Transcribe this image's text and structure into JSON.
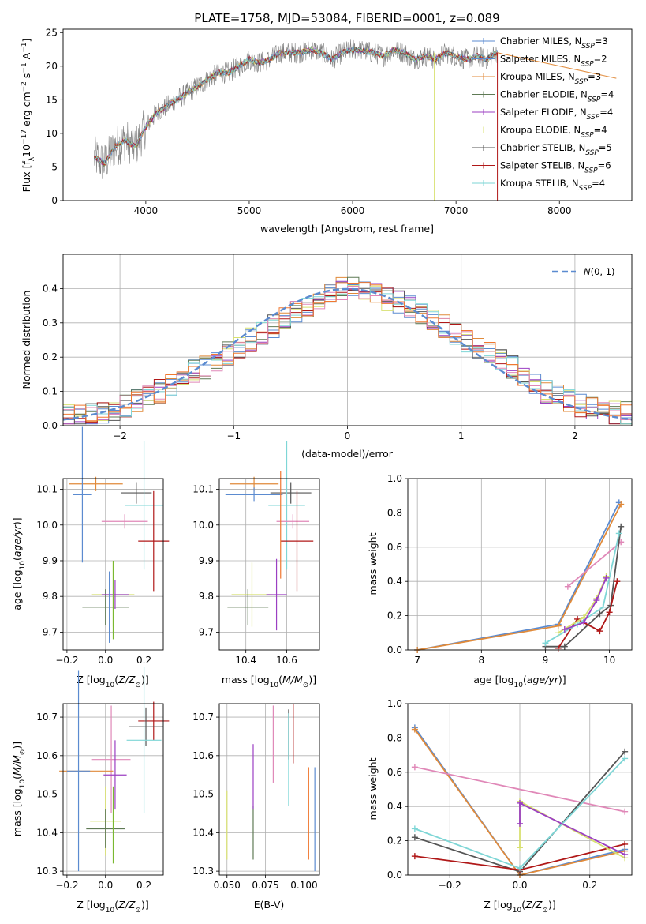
{
  "figure_title": "PLATE=1758, MJD=53084, FIBERID=0001, z=0.089",
  "colors": {
    "Chabrier MILES": "#5b8bd0",
    "Salpeter MILES": "#5b8bd0",
    "Kroupa MILES": "#e08a3a",
    "Chabrier ELODIE": "#5f7a55",
    "Salpeter ELODIE": "#9b3fc2",
    "Kroupa ELODIE": "#d8e070",
    "Chabrier STELIB": "#555555",
    "Salpeter STELIB": "#b01818",
    "Kroupa STELIB": "#7ed6d6",
    "extra_pink": "#e088b8",
    "extra_orange": "#f07830",
    "extra_green": "#7ab830",
    "normal_curve": "#5b8bd0"
  },
  "chart_data": [
    {
      "id": "spectrum",
      "type": "line",
      "title": "PLATE=1758, MJD=53084, FIBERID=0001, z=0.089",
      "xlabel": "wavelength [Angstrom, rest frame]",
      "ylabel_parts": [
        "Flux [f",
        "λ",
        "10",
        "−17",
        " erg cm",
        "−2",
        " s",
        "−1",
        " A",
        "−1",
        "]"
      ],
      "xlim": [
        3200,
        8700
      ],
      "ylim": [
        0,
        25.5
      ],
      "xticks": [
        4000,
        5000,
        6000,
        7000,
        8000
      ],
      "yticks": [
        0,
        5,
        10,
        15,
        20,
        25
      ],
      "legend_position": "right",
      "series": [
        {
          "name": "Chabrier MILES",
          "nssp": "3"
        },
        {
          "name": "Salpeter MILES",
          "nssp": "2"
        },
        {
          "name": "Kroupa MILES",
          "nssp": "3"
        },
        {
          "name": "Chabrier ELODIE",
          "nssp": "4"
        },
        {
          "name": "Salpeter ELODIE",
          "nssp": "4"
        },
        {
          "name": "Kroupa ELODIE",
          "nssp": "4"
        },
        {
          "name": "Chabrier STELIB",
          "nssp": "5"
        },
        {
          "name": "Salpeter STELIB",
          "nssp": "6"
        },
        {
          "name": "Kroupa STELIB",
          "nssp": "4"
        }
      ],
      "data_envelope": {
        "x": [
          3500,
          3600,
          3700,
          3800,
          3900,
          4000,
          4100,
          4200,
          4300,
          4400,
          4500,
          4600,
          4700,
          4800,
          4900,
          5000,
          5100,
          5200,
          5300,
          5400,
          5500,
          5600,
          5700,
          5800,
          5900,
          6000,
          6100,
          6200,
          6300,
          6400,
          6500,
          6600,
          6700,
          6800,
          6900,
          7000,
          7100,
          7200,
          7300,
          7400
        ],
        "y": [
          6.5,
          5.5,
          8,
          9,
          8,
          11,
          13,
          14,
          15,
          16,
          17,
          18,
          19,
          19,
          20,
          21,
          20.5,
          21,
          22,
          22,
          22,
          22.5,
          22,
          21,
          22,
          22.5,
          22.3,
          22,
          21.5,
          22.5,
          22,
          21,
          21.5,
          21,
          22,
          21.5,
          21,
          21.5,
          21,
          22
        ]
      },
      "model_endpoint": {
        "x": [
          7400,
          8550
        ],
        "y": [
          22,
          18.2
        ]
      }
    },
    {
      "id": "residual_histogram",
      "type": "bar",
      "xlabel": "(data-model)/error",
      "ylabel": "Normed distribution",
      "xlim": [
        -2.5,
        2.5
      ],
      "ylim": [
        0,
        0.5
      ],
      "xticks": [
        -2,
        -1,
        0,
        1,
        2
      ],
      "yticks": [
        0.0,
        0.1,
        0.2,
        0.3,
        0.4
      ],
      "legend_position": "top-right",
      "legend": "N(0,1)",
      "bin_width": 0.1,
      "bin_start": -2.5,
      "envelope": [
        0.03,
        0.03,
        0.035,
        0.04,
        0.05,
        0.06,
        0.075,
        0.09,
        0.1,
        0.12,
        0.14,
        0.16,
        0.17,
        0.19,
        0.21,
        0.23,
        0.25,
        0.27,
        0.29,
        0.31,
        0.33,
        0.35,
        0.37,
        0.39,
        0.4,
        0.4,
        0.39,
        0.38,
        0.37,
        0.36,
        0.35,
        0.33,
        0.31,
        0.29,
        0.27,
        0.25,
        0.23,
        0.21,
        0.19,
        0.17,
        0.14,
        0.12,
        0.1,
        0.09,
        0.075,
        0.06,
        0.05,
        0.045,
        0.04,
        0.035
      ]
    },
    {
      "id": "age_vs_Z",
      "type": "scatter",
      "xlabel": "Z [log10(Z/Z⊙)]",
      "ylabel": "age  [log10(age/yr)]",
      "xlim": [
        -0.22,
        0.3
      ],
      "ylim": [
        9.65,
        10.13
      ],
      "xticks": [
        -0.2,
        0.0,
        0.2
      ],
      "yticks": [
        9.7,
        9.8,
        9.9,
        10.0,
        10.1
      ],
      "points": [
        {
          "series": "Kroupa MILES",
          "x": -0.05,
          "y": 10.115,
          "xerr": 0.14,
          "yerr": 0.02
        },
        {
          "series": "Chabrier MILES",
          "x": -0.12,
          "y": 10.085,
          "xerr": 0.05,
          "yerr": 0.19
        },
        {
          "series": "Chabrier STELIB",
          "x": 0.16,
          "y": 10.09,
          "xerr": 0.08,
          "yerr": 0.03
        },
        {
          "series": "Kroupa STELIB",
          "x": 0.2,
          "y": 10.055,
          "xerr": 0.1,
          "yerr": 0.18
        },
        {
          "series": "extra_pink",
          "x": 0.1,
          "y": 10.01,
          "xerr": 0.12,
          "yerr": 0.02
        },
        {
          "series": "Salpeter STELIB",
          "x": 0.25,
          "y": 9.955,
          "xerr": 0.08,
          "yerr": 0.14
        },
        {
          "series": "Kroupa ELODIE",
          "x": 0.04,
          "y": 9.805,
          "xerr": 0.11,
          "yerr": 0.09
        },
        {
          "series": "Chabrier ELODIE",
          "x": 0.0,
          "y": 9.77,
          "xerr": 0.12,
          "yerr": 0.05
        },
        {
          "series": "Salpeter ELODIE",
          "x": 0.05,
          "y": 9.805,
          "xerr": 0.07,
          "yerr": 0.04
        },
        {
          "series": "extra_green",
          "x": 0.04,
          "y": 9.79,
          "xerr": 0.0,
          "yerr": 0.11
        },
        {
          "series": "Salpeter MILES",
          "x": 0.02,
          "y": 9.77,
          "xerr": 0.0,
          "yerr": 0.1
        }
      ]
    },
    {
      "id": "age_vs_mass",
      "type": "scatter",
      "xlabel": "mass [log10(M/M⊙)]",
      "ylabel": "",
      "xlim": [
        10.27,
        10.76
      ],
      "ylim": [
        9.65,
        10.13
      ],
      "xticks": [
        10.4,
        10.6
      ],
      "yticks": [
        9.7,
        9.8,
        9.9,
        10.0,
        10.1
      ],
      "points": [
        {
          "series": "Kroupa MILES",
          "x": 10.44,
          "y": 10.115,
          "xerr": 0.12,
          "yerr": 0.02
        },
        {
          "series": "Chabrier MILES",
          "x": 10.44,
          "y": 10.085,
          "xerr": 0.14,
          "yerr": 0.02
        },
        {
          "series": "Chabrier STELIB",
          "x": 10.62,
          "y": 10.09,
          "xerr": 0.1,
          "yerr": 0.03
        },
        {
          "series": "Kroupa STELIB",
          "x": 10.6,
          "y": 10.055,
          "xerr": 0.09,
          "yerr": 0.18
        },
        {
          "series": "extra_pink",
          "x": 10.63,
          "y": 10.01,
          "xerr": 0.08,
          "yerr": 0.02
        },
        {
          "series": "Salpeter STELIB",
          "x": 10.65,
          "y": 9.955,
          "xerr": 0.08,
          "yerr": 0.14
        },
        {
          "series": "Kroupa ELODIE",
          "x": 10.43,
          "y": 9.805,
          "xerr": 0.1,
          "yerr": 0.09
        },
        {
          "series": "Chabrier ELODIE",
          "x": 10.41,
          "y": 9.77,
          "xerr": 0.1,
          "yerr": 0.05
        },
        {
          "series": "Salpeter ELODIE",
          "x": 10.55,
          "y": 9.805,
          "xerr": 0.05,
          "yerr": 0.1
        },
        {
          "series": "extra_orange",
          "x": 10.57,
          "y": 10.0,
          "xerr": 0.0,
          "yerr": 0.15
        }
      ]
    },
    {
      "id": "massweight_vs_age",
      "type": "line",
      "xlabel": "age  [log10(age/yr)]",
      "ylabel": "mass weight",
      "xlim": [
        6.85,
        10.35
      ],
      "ylim": [
        0,
        1
      ],
      "xticks": [
        7,
        8,
        9,
        10
      ],
      "yticks": [
        0.0,
        0.2,
        0.4,
        0.6,
        0.8,
        1.0
      ],
      "series": [
        {
          "series": "Chabrier MILES",
          "x": [
            7.0,
            9.2,
            10.15
          ],
          "y": [
            0.0,
            0.15,
            0.86
          ]
        },
        {
          "series": "Kroupa MILES",
          "x": [
            7.0,
            9.2,
            10.18
          ],
          "y": [
            0.0,
            0.14,
            0.85
          ]
        },
        {
          "series": "extra_pink",
          "x": [
            9.35,
            10.18
          ],
          "y": [
            0.37,
            0.63
          ]
        },
        {
          "series": "Chabrier STELIB",
          "x": [
            9.0,
            9.3,
            9.85,
            10.02,
            10.18
          ],
          "y": [
            0.02,
            0.02,
            0.21,
            0.26,
            0.72
          ]
        },
        {
          "series": "Salpeter STELIB",
          "x": [
            9.2,
            9.5,
            9.85,
            10.0,
            10.12
          ],
          "y": [
            0.01,
            0.18,
            0.11,
            0.22,
            0.4
          ]
        },
        {
          "series": "Kroupa STELIB",
          "x": [
            9.0,
            9.5,
            9.9,
            10.15
          ],
          "y": [
            0.04,
            0.15,
            0.25,
            0.68
          ]
        },
        {
          "series": "Kroupa ELODIE",
          "x": [
            9.2,
            9.6,
            9.8,
            9.95
          ],
          "y": [
            0.1,
            0.19,
            0.3,
            0.43
          ]
        },
        {
          "series": "Salpeter ELODIE",
          "x": [
            9.3,
            9.6,
            9.8,
            9.95
          ],
          "y": [
            0.12,
            0.16,
            0.29,
            0.42
          ]
        }
      ]
    },
    {
      "id": "mass_vs_Z",
      "type": "scatter",
      "xlabel": "Z [log10(Z/Z⊙)]",
      "ylabel": "mass [log10(M/M⊙)]",
      "xlim": [
        -0.22,
        0.3
      ],
      "ylim": [
        10.29,
        10.735
      ],
      "xticks": [
        -0.2,
        0.0,
        0.2
      ],
      "yticks": [
        10.3,
        10.4,
        10.5,
        10.6,
        10.7
      ],
      "points": [
        {
          "series": "Salpeter STELIB",
          "x": 0.25,
          "y": 10.69,
          "xerr": 0.08,
          "yerr": 0.05
        },
        {
          "series": "Chabrier STELIB",
          "x": 0.21,
          "y": 10.675,
          "xerr": 0.09,
          "yerr": 0.05
        },
        {
          "series": "Kroupa STELIB",
          "x": 0.2,
          "y": 10.64,
          "xerr": 0.09,
          "yerr": 0.19
        },
        {
          "series": "extra_pink",
          "x": 0.03,
          "y": 10.59,
          "xerr": 0.1,
          "yerr": 0.14
        },
        {
          "series": "Kroupa MILES",
          "x": -0.1,
          "y": 10.56,
          "xerr": 0.14,
          "yerr": 0.0
        },
        {
          "series": "Chabrier MILES",
          "x": -0.14,
          "y": 10.56,
          "xerr": 0.06,
          "yerr": 0.26
        },
        {
          "series": "Salpeter ELODIE",
          "x": 0.05,
          "y": 10.55,
          "xerr": 0.06,
          "yerr": 0.09
        },
        {
          "series": "Kroupa ELODIE",
          "x": 0.0,
          "y": 10.43,
          "xerr": 0.08,
          "yerr": 0.09
        },
        {
          "series": "Chabrier ELODIE",
          "x": 0.0,
          "y": 10.41,
          "xerr": 0.1,
          "yerr": 0.05
        },
        {
          "series": "extra_green",
          "x": 0.04,
          "y": 10.42,
          "xerr": 0.0,
          "yerr": 0.1
        }
      ]
    },
    {
      "id": "mass_vs_EBV",
      "type": "scatter",
      "xlabel": "E(B-V)",
      "ylabel": "",
      "xlim": [
        0.045,
        0.11
      ],
      "ylim": [
        10.29,
        10.735
      ],
      "xticks": [
        0.05,
        0.075,
        0.1
      ],
      "xtick_labels": [
        "0.050",
        "0.075",
        "0.100"
      ],
      "yticks": [
        10.3,
        10.4,
        10.5,
        10.6,
        10.7
      ],
      "vlines": [
        {
          "series": "Kroupa ELODIE",
          "x": 0.05,
          "y0": 10.33,
          "y1": 10.51
        },
        {
          "series": "Chabrier ELODIE",
          "x": 0.067,
          "y0": 10.33,
          "y1": 10.47
        },
        {
          "series": "Salpeter ELODIE",
          "x": 0.067,
          "y0": 10.46,
          "y1": 10.63
        },
        {
          "series": "extra_pink",
          "x": 0.08,
          "y0": 10.53,
          "y1": 10.73
        },
        {
          "series": "Chabrier STELIB",
          "x": 0.09,
          "y0": 10.59,
          "y1": 10.72
        },
        {
          "series": "Kroupa STELIB",
          "x": 0.09,
          "y0": 10.47,
          "y1": 10.71
        },
        {
          "series": "Salpeter STELIB",
          "x": 0.093,
          "y0": 10.58,
          "y1": 10.735
        },
        {
          "series": "extra_orange",
          "x": 0.103,
          "y0": 10.33,
          "y1": 10.57
        },
        {
          "series": "Chabrier MILES",
          "x": 0.107,
          "y0": 10.3,
          "y1": 10.57
        }
      ]
    },
    {
      "id": "massweight_vs_Z",
      "type": "line",
      "xlabel": "Z [log10(Z/Z⊙)]",
      "ylabel": "mass weight",
      "xlim": [
        -0.32,
        0.32
      ],
      "ylim": [
        0,
        1
      ],
      "xticks": [
        -0.2,
        0.0,
        0.2
      ],
      "yticks": [
        0.0,
        0.2,
        0.4,
        0.6,
        0.8,
        1.0
      ],
      "series": [
        {
          "series": "Chabrier MILES",
          "x": [
            -0.3,
            0.0,
            0.3
          ],
          "y": [
            0.86,
            0.0,
            0.15
          ]
        },
        {
          "series": "Kroupa MILES",
          "x": [
            -0.3,
            0.0,
            0.3
          ],
          "y": [
            0.85,
            0.0,
            0.14
          ]
        },
        {
          "series": "extra_pink",
          "x": [
            -0.3,
            0.3
          ],
          "y": [
            0.63,
            0.37
          ]
        },
        {
          "series": "Chabrier STELIB",
          "x": [
            -0.3,
            0.0,
            0.3
          ],
          "y": [
            0.22,
            0.02,
            0.72
          ]
        },
        {
          "series": "Salpeter STELIB",
          "x": [
            -0.3,
            0.0,
            0.3
          ],
          "y": [
            0.11,
            0.03,
            0.18
          ]
        },
        {
          "series": "Kroupa STELIB",
          "x": [
            -0.3,
            0.0,
            0.3
          ],
          "y": [
            0.27,
            0.04,
            0.68
          ]
        },
        {
          "series": "Kroupa ELODIE",
          "x": [
            0.0,
            0.0,
            0.3
          ],
          "y": [
            0.16,
            0.43,
            0.1
          ]
        },
        {
          "series": "Salpeter ELODIE",
          "x": [
            0.0,
            0.0,
            0.3
          ],
          "y": [
            0.3,
            0.42,
            0.12
          ]
        }
      ]
    }
  ]
}
